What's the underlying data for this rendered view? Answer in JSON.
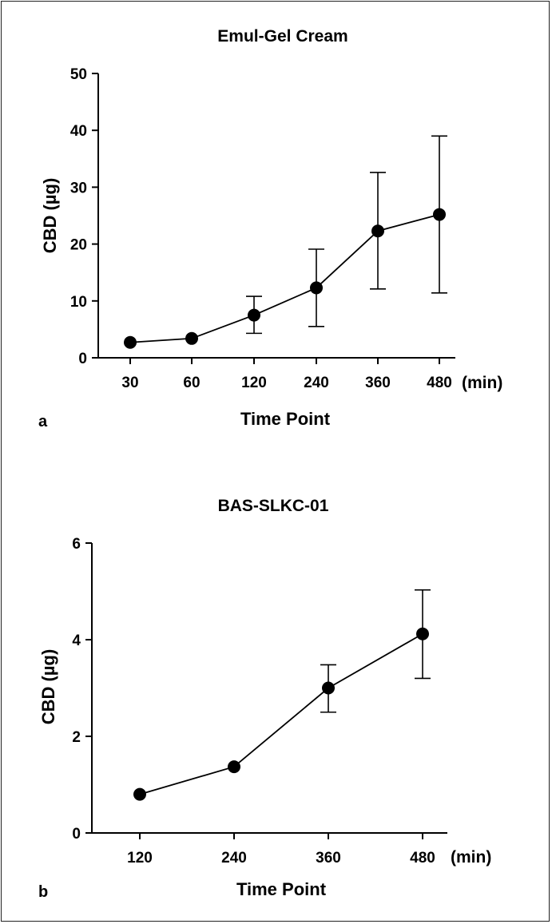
{
  "chart_data": [
    {
      "type": "line",
      "panel_label": "a",
      "title": "Emul-Gel Cream",
      "xlabel": "Time Point",
      "ylabel": "CBD (µg)",
      "x_unit": "(min)",
      "categories": [
        "30",
        "60",
        "120",
        "240",
        "360",
        "480"
      ],
      "yticks": [
        "0",
        "10",
        "20",
        "30",
        "40",
        "50"
      ],
      "ylim": [
        0,
        50
      ],
      "grid": false,
      "series": [
        {
          "values": [
            2.7,
            3.4,
            7.5,
            12.3,
            22.3,
            25.2
          ],
          "error_upper": [
            null,
            null,
            10.8,
            19.1,
            32.6,
            39.0
          ],
          "error_lower": [
            null,
            null,
            4.3,
            5.5,
            12.1,
            11.4
          ]
        }
      ]
    },
    {
      "type": "line",
      "panel_label": "b",
      "title": "BAS-SLKC-01",
      "xlabel": "Time Point",
      "ylabel": "CBD (µg)",
      "x_unit": "(min)",
      "categories": [
        "120",
        "240",
        "360",
        "480"
      ],
      "yticks": [
        "0",
        "2",
        "4",
        "6"
      ],
      "ylim": [
        0,
        6
      ],
      "grid": false,
      "series": [
        {
          "values": [
            0.8,
            1.37,
            3.0,
            4.12
          ],
          "error_upper": [
            null,
            null,
            3.48,
            5.03
          ],
          "error_lower": [
            null,
            null,
            2.5,
            3.2
          ]
        }
      ]
    }
  ]
}
